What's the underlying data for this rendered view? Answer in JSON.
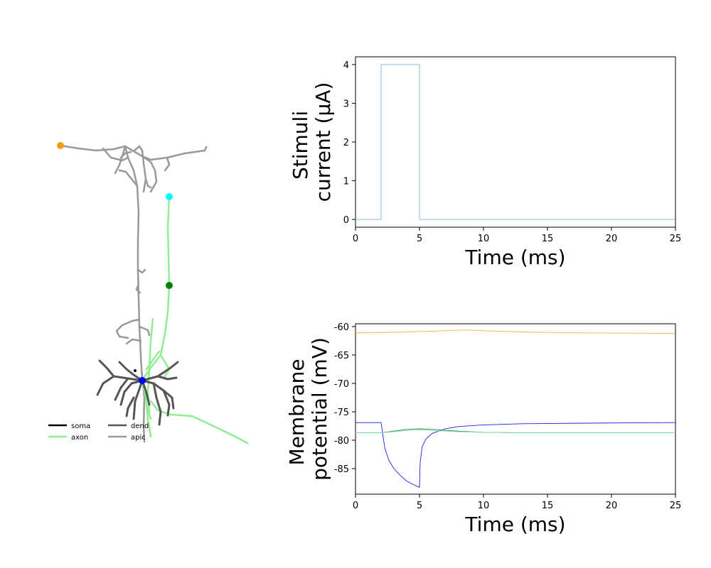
{
  "legend": {
    "items": [
      {
        "label": "soma",
        "color": "#000000"
      },
      {
        "label": "axon",
        "color": "#90ee90"
      },
      {
        "label": "dend",
        "color": "#555555"
      },
      {
        "label": "apic",
        "color": "#999999"
      }
    ]
  },
  "morphology": {
    "marker_colors": [
      "#f39c12",
      "#00ffff",
      "#008000",
      "#0000ff"
    ]
  },
  "chart_data": [
    {
      "type": "line",
      "xlabel": "Time (ms)",
      "ylabel_lines": [
        "Stimuli",
        "current (μA)"
      ],
      "xlim": [
        0,
        25
      ],
      "ylim": [
        -0.2,
        4.2
      ],
      "xticks": [
        0,
        5,
        10,
        15,
        20,
        25
      ],
      "yticks": [
        0,
        1,
        2,
        3,
        4
      ],
      "series": [
        {
          "color": "#7fb3d5",
          "points": [
            [
              0,
              0
            ],
            [
              2,
              0
            ],
            [
              2,
              4
            ],
            [
              5,
              4
            ],
            [
              5,
              0
            ],
            [
              25,
              0
            ]
          ]
        }
      ]
    },
    {
      "type": "line",
      "xlabel": "Time (ms)",
      "ylabel_lines": [
        "Membrane",
        "potential (mV)"
      ],
      "xlim": [
        0,
        25
      ],
      "ylim": [
        -89.5,
        -59.5
      ],
      "xticks": [
        0,
        5,
        10,
        15,
        20,
        25
      ],
      "yticks": [
        -85,
        -80,
        -75,
        -70,
        -65,
        -60
      ],
      "series": [
        {
          "color": "#f5b041",
          "points": [
            [
              0,
              -61.1
            ],
            [
              3,
              -61.0
            ],
            [
              6,
              -60.8
            ],
            [
              8.5,
              -60.6
            ],
            [
              11,
              -60.8
            ],
            [
              14,
              -61.0
            ],
            [
              18,
              -61.1
            ],
            [
              25,
              -61.2
            ]
          ]
        },
        {
          "color": "#1f1fdf",
          "points": [
            [
              0,
              -76.9
            ],
            [
              2,
              -76.9
            ],
            [
              2.1,
              -78.5
            ],
            [
              2.3,
              -81.5
            ],
            [
              2.6,
              -83.5
            ],
            [
              3,
              -85
            ],
            [
              3.5,
              -86.2
            ],
            [
              4,
              -87.2
            ],
            [
              4.5,
              -87.8
            ],
            [
              5,
              -88.3
            ],
            [
              5.05,
              -84
            ],
            [
              5.2,
              -81.2
            ],
            [
              5.5,
              -79.8
            ],
            [
              6,
              -78.8
            ],
            [
              7,
              -78.0
            ],
            [
              8,
              -77.6
            ],
            [
              10,
              -77.3
            ],
            [
              13,
              -77.1
            ],
            [
              18,
              -77.0
            ],
            [
              25,
              -76.9
            ]
          ]
        },
        {
          "color": "#1e8449",
          "points": [
            [
              0,
              -78.7
            ],
            [
              2,
              -78.7
            ],
            [
              3,
              -78.4
            ],
            [
              4,
              -78.1
            ],
            [
              5,
              -78.0
            ],
            [
              6,
              -78.1
            ],
            [
              8,
              -78.4
            ],
            [
              10,
              -78.6
            ],
            [
              13,
              -78.7
            ],
            [
              25,
              -78.7
            ]
          ]
        },
        {
          "color": "#82e0aa",
          "points": [
            [
              0,
              -78.7
            ],
            [
              2,
              -78.7
            ],
            [
              3,
              -78.5
            ],
            [
              4,
              -78.3
            ],
            [
              5,
              -78.2
            ],
            [
              6,
              -78.3
            ],
            [
              8,
              -78.5
            ],
            [
              10,
              -78.6
            ],
            [
              13,
              -78.7
            ],
            [
              25,
              -78.7
            ]
          ]
        }
      ]
    }
  ]
}
